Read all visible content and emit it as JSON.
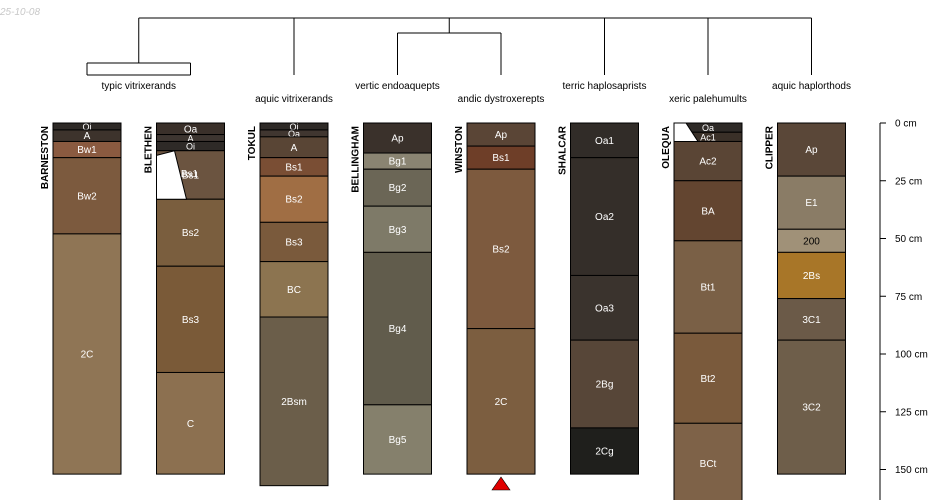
{
  "date_stamp": "25-10-08",
  "marker_color": "#e00000",
  "depth_axis": {
    "ticks": [
      {
        "depth": 0,
        "label": "0 cm"
      },
      {
        "depth": 25,
        "label": "25 cm"
      },
      {
        "depth": 50,
        "label": "50 cm"
      },
      {
        "depth": 75,
        "label": "75 cm"
      },
      {
        "depth": 100,
        "label": "100 cm"
      },
      {
        "depth": 125,
        "label": "125 cm"
      },
      {
        "depth": 150,
        "label": "150 cm"
      }
    ]
  },
  "taxa": [
    {
      "label": "typic vitrixerands",
      "profiles": [
        0,
        1
      ]
    },
    {
      "label": "aquic vitrixerands",
      "profiles": [
        2
      ]
    },
    {
      "label": "vertic endoaquepts",
      "profiles": [
        3
      ]
    },
    {
      "label": "andic dystroxerepts",
      "profiles": [
        4
      ]
    },
    {
      "label": "terric haplosaprists",
      "profiles": [
        5
      ]
    },
    {
      "label": "xeric palehumults",
      "profiles": [
        6
      ]
    },
    {
      "label": "aquic haplorthods",
      "profiles": [
        7
      ]
    }
  ],
  "profiles": [
    {
      "name": "BARNESTON",
      "horizons": [
        {
          "name": "Oi",
          "top": 0,
          "bottom": 3,
          "color": "#2e2a27"
        },
        {
          "name": "A",
          "top": 3,
          "bottom": 8,
          "color": "#3d332c"
        },
        {
          "name": "Bw1",
          "top": 8,
          "bottom": 15,
          "color": "#8a5a40"
        },
        {
          "name": "Bw2",
          "top": 15,
          "bottom": 48,
          "color": "#7c5a3e"
        },
        {
          "name": "2C",
          "top": 48,
          "bottom": 152,
          "color": "#8f7555"
        }
      ]
    },
    {
      "name": "BLETHEN",
      "horizons": [
        {
          "name": "Oa",
          "top": 0,
          "bottom": 5,
          "color": "#3a302a"
        },
        {
          "name": "A",
          "top": 5,
          "bottom": 8,
          "color": "#3d3530"
        },
        {
          "name": "Oi",
          "top": 8,
          "bottom": 12,
          "color": "#2e2a27"
        },
        {
          "name": "Bs1",
          "top": 12,
          "bottom": 33,
          "color": "#6b5440"
        },
        {
          "name": "Bs2",
          "top": 33,
          "bottom": 62,
          "color": "#7a5e3e"
        },
        {
          "name": "Bs3",
          "top": 62,
          "bottom": 108,
          "color": "#7a5a38"
        },
        {
          "name": "C",
          "top": 108,
          "bottom": 152,
          "color": "#8c7050"
        }
      ]
    },
    {
      "name": "TOKUL",
      "horizons": [
        {
          "name": "Oi",
          "top": 0,
          "bottom": 3,
          "color": "#2e2a27"
        },
        {
          "name": "Oa",
          "top": 3,
          "bottom": 6,
          "color": "#403630"
        },
        {
          "name": "A",
          "top": 6,
          "bottom": 15,
          "color": "#594535"
        },
        {
          "name": "Bs1",
          "top": 15,
          "bottom": 23,
          "color": "#7a4e34"
        },
        {
          "name": "Bs2",
          "top": 23,
          "bottom": 43,
          "color": "#a06e44"
        },
        {
          "name": "Bs3",
          "top": 43,
          "bottom": 60,
          "color": "#7a5a3c"
        },
        {
          "name": "BC",
          "top": 60,
          "bottom": 84,
          "color": "#8c7450"
        },
        {
          "name": "2Bsm",
          "top": 84,
          "bottom": 157,
          "color": "#6b5e4a"
        }
      ]
    },
    {
      "name": "BELLINGHAM",
      "horizons": [
        {
          "name": "Ap",
          "top": 0,
          "bottom": 13,
          "color": "#3a312b"
        },
        {
          "name": "Bg1",
          "top": 13,
          "bottom": 20,
          "color": "#8a8472"
        },
        {
          "name": "Bg2",
          "top": 20,
          "bottom": 36,
          "color": "#6b6656"
        },
        {
          "name": "Bg3",
          "top": 36,
          "bottom": 56,
          "color": "#7e7a68"
        },
        {
          "name": "Bg4",
          "top": 56,
          "bottom": 122,
          "color": "#615c4c"
        },
        {
          "name": "Bg5",
          "top": 122,
          "bottom": 152,
          "color": "#85806c"
        }
      ]
    },
    {
      "name": "WINSTON",
      "horizons": [
        {
          "name": "Ap",
          "top": 0,
          "bottom": 10,
          "color": "#5a4536"
        },
        {
          "name": "Bs1",
          "top": 10,
          "bottom": 20,
          "color": "#6e3e28"
        },
        {
          "name": "Bs2",
          "top": 20,
          "bottom": 89,
          "color": "#7d5a3e"
        },
        {
          "name": "2C",
          "top": 89,
          "bottom": 152,
          "color": "#7c5e40"
        }
      ]
    },
    {
      "name": "SHALCAR",
      "horizons": [
        {
          "name": "Oa1",
          "top": 0,
          "bottom": 15,
          "color": "#312c28"
        },
        {
          "name": "Oa2",
          "top": 15,
          "bottom": 66,
          "color": "#342e29"
        },
        {
          "name": "Oa3",
          "top": 66,
          "bottom": 94,
          "color": "#3a332d"
        },
        {
          "name": "2Bg",
          "top": 94,
          "bottom": 132,
          "color": "#574638"
        },
        {
          "name": "2Cg",
          "top": 132,
          "bottom": 152,
          "color": "#1f1f1c"
        }
      ]
    },
    {
      "name": "OLEQUA",
      "horizons": [
        {
          "name": "Oa",
          "top": 0,
          "bottom": 4,
          "color": "#2e2a27"
        },
        {
          "name": "Ac1",
          "top": 4,
          "bottom": 8,
          "color": "#3a3028"
        },
        {
          "name": "Ac2",
          "top": 8,
          "bottom": 25,
          "color": "#5a4535"
        },
        {
          "name": "BA",
          "top": 25,
          "bottom": 51,
          "color": "#634530"
        },
        {
          "name": "Bt1",
          "top": 51,
          "bottom": 91,
          "color": "#7a6046"
        },
        {
          "name": "Bt2",
          "top": 91,
          "bottom": 130,
          "color": "#7a5a3c"
        },
        {
          "name": "BCt",
          "top": 130,
          "bottom": 165,
          "color": "#7e6248"
        }
      ]
    },
    {
      "name": "CLIPPER",
      "horizons": [
        {
          "name": "Ap",
          "top": 0,
          "bottom": 23,
          "color": "#5a4738"
        },
        {
          "name": "E1",
          "top": 23,
          "bottom": 46,
          "color": "#8a7c66"
        },
        {
          "name": "200",
          "top": 46,
          "bottom": 56,
          "color": "#a09178"
        },
        {
          "name": "2Bs",
          "top": 56,
          "bottom": 76,
          "color": "#a87628"
        },
        {
          "name": "3C1",
          "top": 76,
          "bottom": 94,
          "color": "#6b5a48"
        },
        {
          "name": "3C2",
          "top": 94,
          "bottom": 152,
          "color": "#6e5e4a"
        }
      ]
    }
  ]
}
